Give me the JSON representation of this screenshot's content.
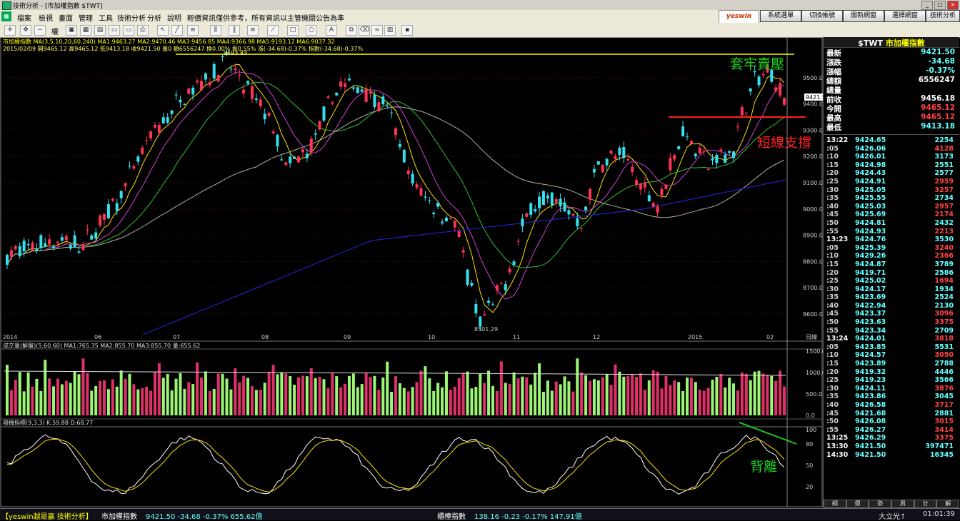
{
  "window": {
    "title": "技術分析 - [市加權指數 $TWT]",
    "icon": "app-icon"
  },
  "menu": {
    "items": [
      "檔案",
      "檢視",
      "畫面",
      "管理",
      "工具",
      "技術分析",
      "分析",
      "說明",
      "輕價資訊僅供參考，所有資訊以主管機關公告為準"
    ],
    "brand": "yeswin",
    "buttons": [
      "系統選單",
      "切換帳號",
      "開新網窗",
      "選擇網窗",
      "技術分析"
    ]
  },
  "toolbar": {
    "period_label": "權"
  },
  "main": {
    "ma_line": "市加權指數 MA(3,5,10,20,60,240) MA1:9463.27 MA2:9470.46 MA3:9456.85 MA4:9366.98 MA5:9193.12 MA6:9037.32",
    "ohlc_line": "2015/02/09 開9465.12 高9465.12 低9413.18 收9421.50 量0 額6556247 換0.00% 振0.55% 漲(-34.68)-0.37% 指數(-34.68)-0.37%",
    "peak_label": "9593.83",
    "low_label": "8501.29",
    "annotations": {
      "resistance": "套牢賣壓",
      "support": "短線支撐",
      "divergence": "背離"
    },
    "price_ticks": [
      "9500.0",
      "9400.0",
      "9300.0",
      "9200.0",
      "9100.0",
      "9000.0",
      "8900.0",
      "8800.0",
      "8700.0",
      "8600.0"
    ],
    "x_labels": [
      "2014",
      "06",
      "07",
      "08",
      "09",
      "10",
      "11",
      "12",
      "2015",
      "02"
    ],
    "x_unit": "日線",
    "last_price_tag": "9421.5"
  },
  "volume": {
    "legend": "成交量(解盤)(5,60,60) MA1:765.35 MA2:855.70 MA3:855.70 量:655.62",
    "ticks": [
      "1500.0",
      "1000.0",
      "500.0",
      "0.0"
    ]
  },
  "kd": {
    "legend": "隨機指標(9,3,3) K:59.88 D:68.77",
    "ticks": [
      "100",
      "80",
      "50",
      "20"
    ]
  },
  "colors": {
    "up": "#ff3355",
    "down": "#33e0f0",
    "vol_up": "#e0306a",
    "vol_down": "#9cf573",
    "ma_yellow": "#ffe000",
    "ma_magenta": "#d040d0",
    "ma_green": "#30c030",
    "ma_gray": "#b0b0a0",
    "ma_blue": "#2020c0",
    "annot_green": "#22cc22",
    "annot_red": "#ff2222"
  },
  "quote": {
    "header_code": "$TWT",
    "header_name": "市加權指數",
    "rows": [
      {
        "label": "最新",
        "value": "9421.50",
        "color": "#6ff"
      },
      {
        "label": "漲跌",
        "value": "-34.68",
        "color": "#6ff"
      },
      {
        "label": "漲幅",
        "value": "-0.37%",
        "color": "#6ff"
      },
      {
        "label": "總額",
        "value": "6556247",
        "color": "#fff"
      },
      {
        "label": "總量",
        "value": "",
        "color": "#fff"
      },
      {
        "label": "前收",
        "value": "9456.18",
        "color": "#fff"
      },
      {
        "label": "今開",
        "value": "9465.12",
        "color": "#f44"
      },
      {
        "label": "最高",
        "value": "9465.12",
        "color": "#f44"
      },
      {
        "label": "最低",
        "value": "9413.18",
        "color": "#6ff"
      }
    ]
  },
  "ticks": [
    {
      "t": "13:22",
      "p": "9424.65",
      "v": "2254",
      "c": "#6ff"
    },
    {
      "t": ":05",
      "p": "9426.06",
      "v": "4128",
      "c": "#f44"
    },
    {
      "t": ":10",
      "p": "9426.01",
      "v": "3173",
      "c": "#6ff"
    },
    {
      "t": ":15",
      "p": "9424.98",
      "v": "2551",
      "c": "#6ff"
    },
    {
      "t": ":20",
      "p": "9424.43",
      "v": "2577",
      "c": "#6ff"
    },
    {
      "t": ":25",
      "p": "9424.91",
      "v": "2959",
      "c": "#f44"
    },
    {
      "t": ":30",
      "p": "9425.05",
      "v": "3257",
      "c": "#f44"
    },
    {
      "t": ":35",
      "p": "9425.55",
      "v": "2734",
      "c": "#6ff"
    },
    {
      "t": ":40",
      "p": "9425.03",
      "v": "2957",
      "c": "#f44"
    },
    {
      "t": ":45",
      "p": "9425.69",
      "v": "2174",
      "c": "#f44"
    },
    {
      "t": ":50",
      "p": "9424.81",
      "v": "2432",
      "c": "#6ff"
    },
    {
      "t": ":55",
      "p": "9424.93",
      "v": "2213",
      "c": "#f44"
    },
    {
      "t": "13:23",
      "p": "9424.76",
      "v": "3530",
      "c": "#6ff"
    },
    {
      "t": ":05",
      "p": "9425.39",
      "v": "3240",
      "c": "#f44"
    },
    {
      "t": ":10",
      "p": "9429.26",
      "v": "2366",
      "c": "#f44"
    },
    {
      "t": ":15",
      "p": "9424.87",
      "v": "3789",
      "c": "#6ff"
    },
    {
      "t": ":20",
      "p": "9419.71",
      "v": "2586",
      "c": "#6ff"
    },
    {
      "t": ":25",
      "p": "9425.02",
      "v": "1694",
      "c": "#f44"
    },
    {
      "t": ":30",
      "p": "9424.17",
      "v": "1934",
      "c": "#6ff"
    },
    {
      "t": ":35",
      "p": "9423.69",
      "v": "2524",
      "c": "#6ff"
    },
    {
      "t": ":40",
      "p": "9422.94",
      "v": "2130",
      "c": "#6ff"
    },
    {
      "t": ":45",
      "p": "9423.37",
      "v": "3096",
      "c": "#f44"
    },
    {
      "t": ":50",
      "p": "9423.63",
      "v": "3375",
      "c": "#f44"
    },
    {
      "t": ":55",
      "p": "9423.34",
      "v": "2709",
      "c": "#6ff"
    },
    {
      "t": "13:24",
      "p": "9424.01",
      "v": "3818",
      "c": "#f44"
    },
    {
      "t": ":05",
      "p": "9423.85",
      "v": "5531",
      "c": "#6ff"
    },
    {
      "t": ":10",
      "p": "9424.57",
      "v": "3050",
      "c": "#f44"
    },
    {
      "t": ":15",
      "p": "9423.89",
      "v": "2788",
      "c": "#6ff"
    },
    {
      "t": ":20",
      "p": "9419.32",
      "v": "4446",
      "c": "#6ff"
    },
    {
      "t": ":25",
      "p": "9419.23",
      "v": "3566",
      "c": "#6ff"
    },
    {
      "t": ":30",
      "p": "9424.11",
      "v": "3876",
      "c": "#f44"
    },
    {
      "t": ":35",
      "p": "9423.86",
      "v": "3045",
      "c": "#6ff"
    },
    {
      "t": ":40",
      "p": "9426.58",
      "v": "3717",
      "c": "#f44"
    },
    {
      "t": ":45",
      "p": "9421.68",
      "v": "2881",
      "c": "#6ff"
    },
    {
      "t": ":50",
      "p": "9426.08",
      "v": "3015",
      "c": "#f44"
    },
    {
      "t": ":55",
      "p": "9426.27",
      "v": "3414",
      "c": "#f44"
    },
    {
      "t": "13:25",
      "p": "9426.29",
      "v": "3375",
      "c": "#f44"
    },
    {
      "t": "13:30",
      "p": "9421.50",
      "v": "397471",
      "c": "#6ff"
    },
    {
      "t": "14:30",
      "p": "9421.50",
      "v": "16345",
      "c": "#6ff"
    }
  ],
  "panel_tabs": [
    "細",
    "價",
    "勢",
    "周",
    "分",
    "解"
  ],
  "status": {
    "app": "【yeswin越是贏 技術分析】",
    "idx1_name": "市加權指數",
    "idx1_vals": "9421.50 -34.68 -0.37% 655.62億",
    "idx2_name": "櫃檯指數",
    "idx2_vals": "138.16 -0.23 -0.17% 147.91億",
    "ime": "大立光↑",
    "clock": "01:01:39"
  }
}
